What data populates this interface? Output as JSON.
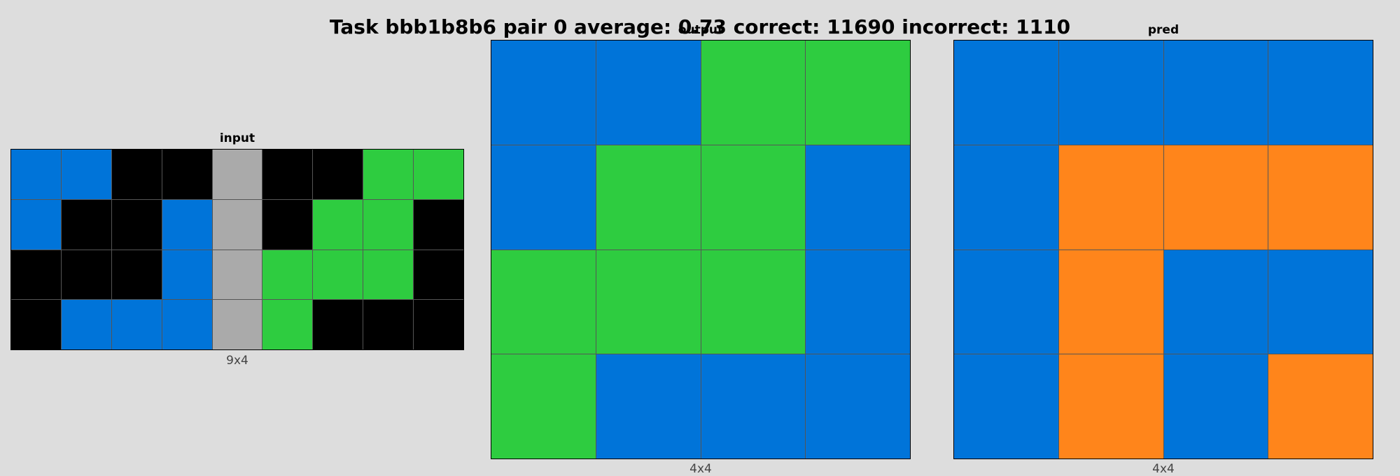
{
  "title": "Task bbb1b8b6 pair 0 average: 0.73 correct: 11690 incorrect: 1110",
  "palette": {
    "0": "#000000",
    "1": "#0074D9",
    "3": "#2ECC40",
    "5": "#AAAAAA",
    "7": "#FF851B"
  },
  "panels": {
    "input": {
      "title": "input",
      "dims": "9x4",
      "grid": [
        [
          1,
          1,
          0,
          0,
          5,
          0,
          0,
          3,
          3
        ],
        [
          1,
          0,
          0,
          1,
          5,
          0,
          3,
          3,
          0
        ],
        [
          0,
          0,
          0,
          1,
          5,
          3,
          3,
          3,
          0
        ],
        [
          0,
          1,
          1,
          1,
          5,
          3,
          0,
          0,
          0
        ]
      ]
    },
    "output": {
      "title": "output",
      "dims": "4x4",
      "grid": [
        [
          1,
          1,
          3,
          3
        ],
        [
          1,
          3,
          3,
          1
        ],
        [
          3,
          3,
          3,
          1
        ],
        [
          3,
          1,
          1,
          1
        ]
      ]
    },
    "pred": {
      "title": "pred",
      "dims": "4x4",
      "grid": [
        [
          1,
          1,
          1,
          1
        ],
        [
          1,
          7,
          7,
          7
        ],
        [
          1,
          7,
          1,
          1
        ],
        [
          1,
          7,
          1,
          7
        ]
      ]
    }
  }
}
